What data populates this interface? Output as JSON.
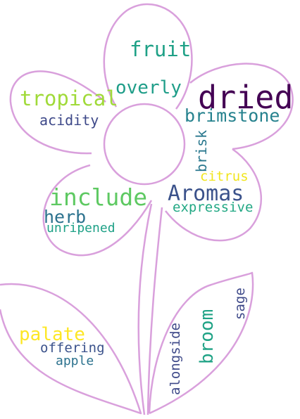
{
  "outline_color": "#d9a0dc",
  "words": [
    {
      "id": "fruit",
      "text": "fruit",
      "color": "#1fa187"
    },
    {
      "id": "dried",
      "text": "dried",
      "color": "#440154"
    },
    {
      "id": "overly",
      "text": "overly",
      "color": "#1f9e89"
    },
    {
      "id": "tropical",
      "text": "tropical",
      "color": "#a0da39"
    },
    {
      "id": "brimstone",
      "text": "brimstone",
      "color": "#26828e"
    },
    {
      "id": "acidity",
      "text": "acidity",
      "color": "#3e4989"
    },
    {
      "id": "brisk",
      "text": "brisk",
      "color": "#2a788e"
    },
    {
      "id": "citrus",
      "text": "citrus",
      "color": "#f1e51d"
    },
    {
      "id": "include",
      "text": "include",
      "color": "#5ec962"
    },
    {
      "id": "aromas",
      "text": "Aromas",
      "color": "#3b528b"
    },
    {
      "id": "herb",
      "text": "herb",
      "color": "#2c728e"
    },
    {
      "id": "expressive",
      "text": "expressive",
      "color": "#22a884"
    },
    {
      "id": "unripened",
      "text": "unripened",
      "color": "#1fa187"
    },
    {
      "id": "palate",
      "text": "palate",
      "color": "#fde725"
    },
    {
      "id": "offering",
      "text": "offering",
      "color": "#3b528b"
    },
    {
      "id": "apple",
      "text": "apple",
      "color": "#2c728e"
    },
    {
      "id": "broom",
      "text": "broom",
      "color": "#20a386"
    },
    {
      "id": "alongside",
      "text": "alongside",
      "color": "#3e4989"
    },
    {
      "id": "sage",
      "text": "sage",
      "color": "#3e4989"
    }
  ]
}
